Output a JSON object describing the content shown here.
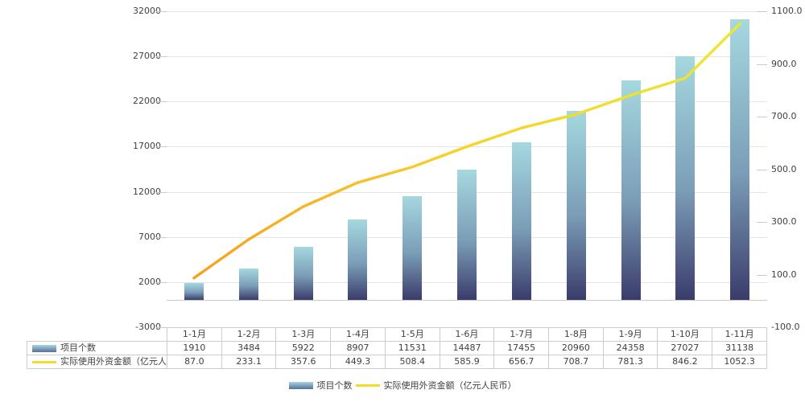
{
  "chart_data": {
    "type": "combo",
    "title": "",
    "categories": [
      "1-1月",
      "1-2月",
      "1-3月",
      "1-4月",
      "1-5月",
      "1-6月",
      "1-7月",
      "1-8月",
      "1-9月",
      "1-10月",
      "1-11月"
    ],
    "series": [
      {
        "name": "项目个数",
        "type": "bar",
        "axis": "left",
        "decimals": 0,
        "values": [
          1910,
          3484,
          5922,
          8907,
          11531,
          14487,
          17455,
          20960,
          24358,
          27027,
          31138
        ]
      },
      {
        "name": "实际使用外资金额（亿元人民币）",
        "type": "line",
        "axis": "right",
        "decimals": 1,
        "values": [
          87.0,
          233.1,
          357.6,
          449.3,
          508.4,
          585.9,
          656.7,
          708.7,
          781.3,
          846.2,
          1052.3
        ]
      }
    ],
    "left_axis": {
      "min": -3000,
      "max": 32000,
      "tick_labels": [
        "32000",
        "27000",
        "22000",
        "17000",
        "12000",
        "7000",
        "2000",
        "-3000"
      ]
    },
    "right_axis": {
      "min": -100.0,
      "max": 1100.0,
      "tick_labels": [
        "1100.0",
        "900.0",
        "700.0",
        "500.0",
        "300.0",
        "100.0",
        "-100.0"
      ]
    },
    "grid": true,
    "legend_position": "bottom",
    "data_table_shown": true
  },
  "legend": {
    "bar_label": "项目个数",
    "line_label": "实际使用外资金额（亿元人民币）"
  },
  "colors": {
    "bar_top": "#a5d8df",
    "bar_mid": "#7b9db7",
    "bar_bottom": "#3a3c6b",
    "line_start": "#f6a11e",
    "line_mid": "#f8d32a",
    "line_end": "#eae833",
    "grid": "#e4e4e4",
    "zero_line": "#c9c9c9",
    "table_border": "#cccccc",
    "text": "#404040"
  }
}
